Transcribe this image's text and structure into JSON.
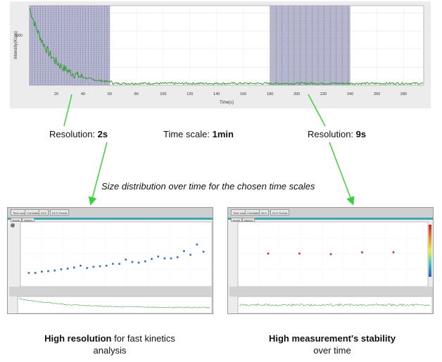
{
  "top_chart": {
    "ylabel": "Intensity(Kcps)",
    "xlabel": "Time(s)",
    "y_tick_label": "5000",
    "x_ticks": [
      20,
      40,
      60,
      80,
      100,
      120,
      140,
      160,
      180,
      200,
      220,
      240,
      260,
      280
    ],
    "xlim": [
      0,
      295
    ],
    "ylim": [
      0,
      11000
    ],
    "highlight_windows": [
      [
        0,
        60
      ],
      [
        180,
        240
      ]
    ],
    "line_color": "#2e9e2e",
    "window_color": "#a9a9c3"
  },
  "annotations": {
    "resolution_left_label": "Resolution: ",
    "resolution_left_value": "2s",
    "time_scale_label": "Time scale: ",
    "time_scale_value": "1min",
    "resolution_right_label": "Resolution: ",
    "resolution_right_value": "9s",
    "distribution_caption": "Size distribution over time for the chosen time scales"
  },
  "panels": {
    "left": {
      "tabs": [
        "Time course",
        "Correlation",
        "DLS",
        "DLS-Trends"
      ],
      "subtabs": [
        "Results",
        "Statistics"
      ],
      "point_color": "#3a78c2",
      "points_y": [
        0.18,
        0.18,
        0.2,
        0.21,
        0.22,
        0.24,
        0.25,
        0.27,
        0.3,
        0.26,
        0.28,
        0.29,
        0.3,
        0.33,
        0.33,
        0.4,
        0.36,
        0.35,
        0.37,
        0.41,
        0.45,
        0.42,
        0.42,
        0.44,
        0.54,
        0.48,
        0.65,
        0.53
      ]
    },
    "right": {
      "tabs": [
        "Time course",
        "Correlation",
        "DLS",
        "DLS-Trends"
      ],
      "subtabs": [
        "Results",
        "Statistics"
      ],
      "point_color": "#d2343a",
      "points_y": [
        0.5,
        0.5,
        0.49,
        0.52,
        0.52
      ]
    }
  },
  "captions": {
    "left_bold": "High resolution",
    "left_rest_line1": " for fast kinetics",
    "left_line2": "analysis",
    "right_bold": "High measurement's stability",
    "right_line2": "over time"
  }
}
